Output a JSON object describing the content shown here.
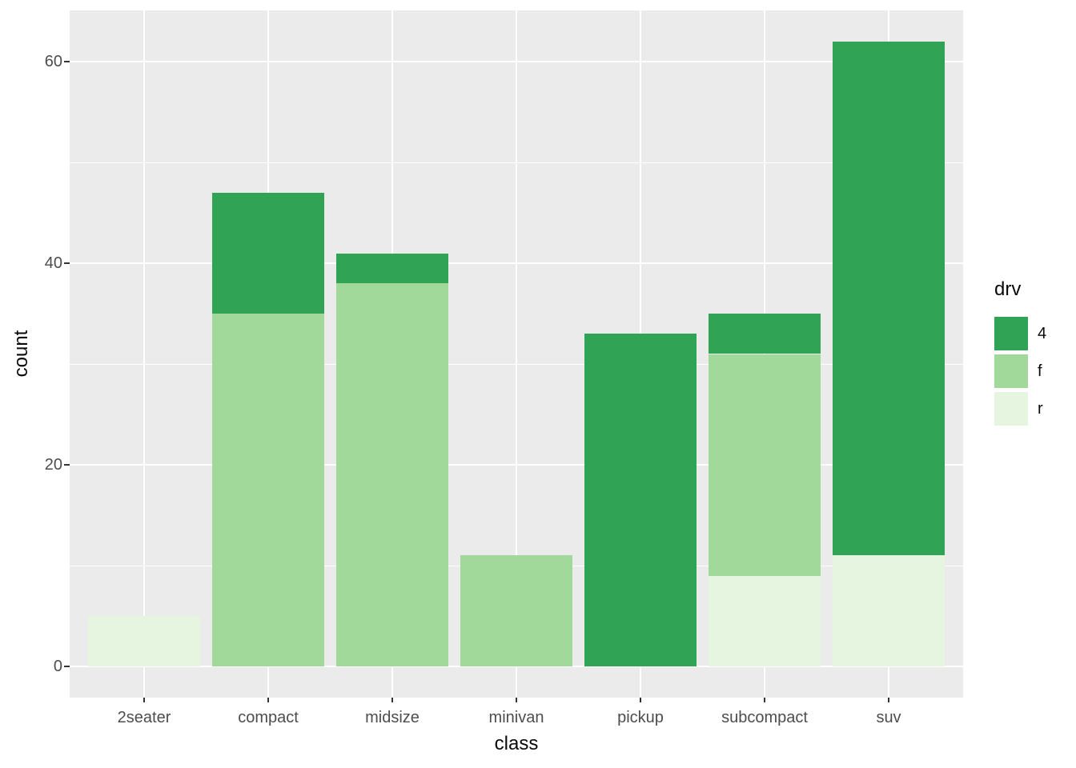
{
  "figure": {
    "background": "#ffffff",
    "panel_background": "#ebebeb",
    "gridline_color": "#ffffff",
    "tick_mark_color": "#333333",
    "tick_label_color": "#4d4d4d",
    "axis_title_color": "#0a0a0a"
  },
  "chart_data": {
    "type": "bar",
    "stacked": true,
    "title": "",
    "xlabel": "class",
    "ylabel": "count",
    "categories": [
      "2seater",
      "compact",
      "midsize",
      "minivan",
      "pickup",
      "subcompact",
      "suv"
    ],
    "series": [
      {
        "name": "4",
        "color": "#31a354",
        "values": [
          0,
          12,
          3,
          0,
          33,
          4,
          51
        ]
      },
      {
        "name": "f",
        "color": "#a1d99b",
        "values": [
          0,
          35,
          38,
          11,
          0,
          22,
          0
        ]
      },
      {
        "name": "r",
        "color": "#e5f5e0",
        "values": [
          5,
          0,
          0,
          0,
          0,
          9,
          11
        ]
      }
    ],
    "stack_totals": [
      5,
      47,
      41,
      11,
      33,
      35,
      62
    ],
    "stack_order_bottom_to_top": [
      "r",
      "f",
      "4"
    ],
    "y_major_ticks": [
      0,
      20,
      40,
      60
    ],
    "y_minor_gridlines": [
      10,
      30,
      50
    ],
    "ylim": [
      -3.1,
      65.1
    ],
    "grid": true,
    "legend": {
      "title": "drv",
      "position": "right",
      "entries": [
        "4",
        "f",
        "r"
      ]
    }
  }
}
